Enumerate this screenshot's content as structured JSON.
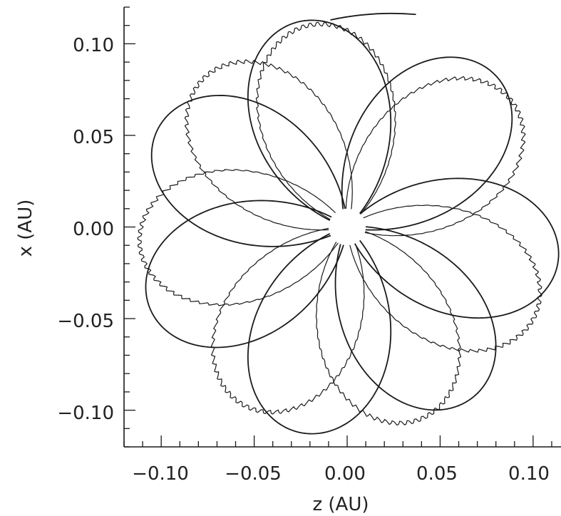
{
  "chart_data": {
    "type": "line",
    "title": "",
    "xlabel": "z (AU)",
    "ylabel": "x (AU)",
    "xlim": [
      -0.12,
      0.115
    ],
    "ylim": [
      -0.12,
      0.12
    ],
    "x_ticks": [
      "−0.10",
      "−0.05",
      "0.00",
      "0.05",
      "0.10"
    ],
    "y_ticks": [
      "−0.10",
      "−0.05",
      "0.00",
      "0.05",
      "0.10"
    ],
    "x_tick_values": [
      -0.1,
      -0.05,
      0.0,
      0.05,
      0.1
    ],
    "y_tick_values": [
      -0.1,
      -0.05,
      0.0,
      0.05,
      0.1
    ],
    "grid": false,
    "legend": "none",
    "line_color": "#1a1a1a",
    "series": [
      {
        "loop_peak_directions_deg": [
          103,
          47,
          -10,
          -55,
          -103,
          -157,
          152
        ],
        "loop_radius_au": 0.115,
        "loop_count": 7,
        "start_point": [
          -0.009,
          0.113
        ],
        "end_point": [
          0.037,
          0.116
        ]
      },
      {
        "loop_peak_directions_deg": [
          100,
          38,
          -26,
          -70,
          -120,
          -175,
          133
        ],
        "loop_radius_au": 0.112,
        "loop_count": 7,
        "oscillating": true
      }
    ]
  }
}
